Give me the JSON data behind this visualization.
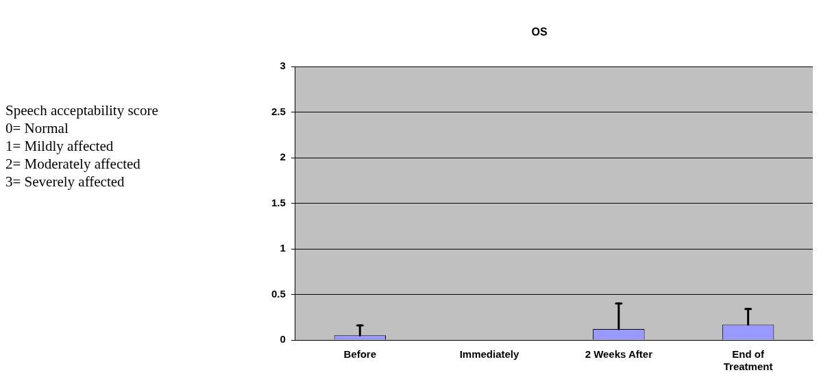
{
  "chart_data": {
    "type": "bar",
    "title": "OS",
    "categories": [
      "Before",
      "Immediately",
      "2 Weeks After",
      "End of Treatment"
    ],
    "values": [
      0.05,
      0,
      0.12,
      0.17
    ],
    "errors": [
      [
        0.05,
        0.16
      ],
      null,
      [
        0.12,
        0.4
      ],
      [
        0.17,
        0.34
      ]
    ],
    "color": "#9999ff",
    "ylim": [
      0,
      3
    ],
    "yticks": [
      0,
      0.5,
      1,
      1.5,
      2,
      2.5,
      3
    ],
    "grid": "y",
    "legend": false,
    "annotations": [
      "Speech acceptability score",
      "0= Normal",
      "1= Mildly affected",
      "2= Moderately affected",
      "3= Severely affected"
    ]
  }
}
